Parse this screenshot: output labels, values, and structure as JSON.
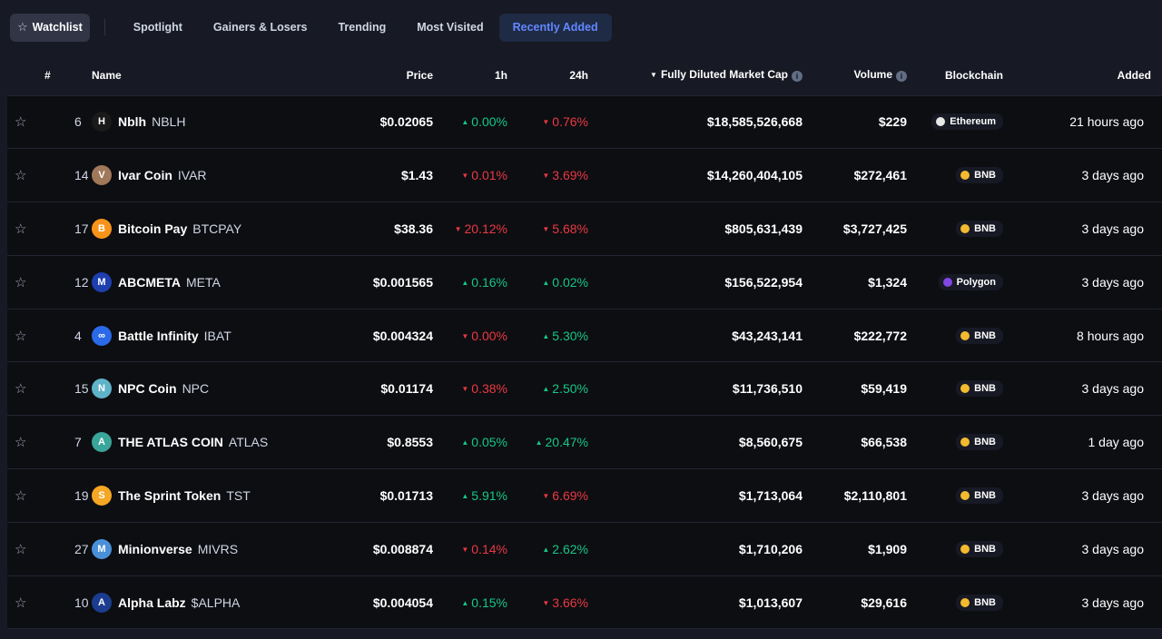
{
  "tabs": {
    "watchlist": "Watchlist",
    "spotlight": "Spotlight",
    "gainers": "Gainers & Losers",
    "trending": "Trending",
    "most_visited": "Most Visited",
    "recently_added": "Recently Added"
  },
  "headers": {
    "rank": "#",
    "name": "Name",
    "price": "Price",
    "h1": "1h",
    "h24": "24h",
    "mcap": "Fully Diluted Market Cap",
    "volume": "Volume",
    "chain": "Blockchain",
    "added": "Added"
  },
  "colors": {
    "up": "#16c784",
    "down": "#ea3943",
    "accent": "#6188ff"
  },
  "rows": [
    {
      "rank": "6",
      "name": "Nblh",
      "symbol": "NBLH",
      "price": "$0.02065",
      "h1": "0.00%",
      "h1_dir": "up",
      "h24": "0.76%",
      "h24_dir": "down",
      "mcap": "$18,585,526,668",
      "volume": "$229",
      "chain": "Ethereum",
      "added": "21 hours ago",
      "logo_color": "#1a1a1a",
      "logo_text": "H",
      "chain_color": "#e8e8e8"
    },
    {
      "rank": "14",
      "name": "Ivar Coin",
      "symbol": "IVAR",
      "price": "$1.43",
      "h1": "0.01%",
      "h1_dir": "down",
      "h24": "3.69%",
      "h24_dir": "down",
      "mcap": "$14,260,404,105",
      "volume": "$272,461",
      "chain": "BNB",
      "added": "3 days ago",
      "logo_color": "#a0785a",
      "logo_text": "V",
      "chain_color": "#f3ba2f"
    },
    {
      "rank": "17",
      "name": "Bitcoin Pay",
      "symbol": "BTCPAY",
      "price": "$38.36",
      "h1": "20.12%",
      "h1_dir": "down",
      "h24": "5.68%",
      "h24_dir": "down",
      "mcap": "$805,631,439",
      "volume": "$3,727,425",
      "chain": "BNB",
      "added": "3 days ago",
      "logo_color": "#f7931a",
      "logo_text": "B",
      "chain_color": "#f3ba2f"
    },
    {
      "rank": "12",
      "name": "ABCMETA",
      "symbol": "META",
      "price": "$0.001565",
      "h1": "0.16%",
      "h1_dir": "up",
      "h24": "0.02%",
      "h24_dir": "up",
      "mcap": "$156,522,954",
      "volume": "$1,324",
      "chain": "Polygon",
      "added": "3 days ago",
      "logo_color": "#1e3fae",
      "logo_text": "M",
      "chain_color": "#8247e5"
    },
    {
      "rank": "4",
      "name": "Battle Infinity",
      "symbol": "IBAT",
      "price": "$0.004324",
      "h1": "0.00%",
      "h1_dir": "down",
      "h24": "5.30%",
      "h24_dir": "up",
      "mcap": "$43,243,141",
      "volume": "$222,772",
      "chain": "BNB",
      "added": "8 hours ago",
      "logo_color": "#2a6ae8",
      "logo_text": "∞",
      "chain_color": "#f3ba2f"
    },
    {
      "rank": "15",
      "name": "NPC Coin",
      "symbol": "NPC",
      "price": "$0.01174",
      "h1": "0.38%",
      "h1_dir": "down",
      "h24": "2.50%",
      "h24_dir": "up",
      "mcap": "$11,736,510",
      "volume": "$59,419",
      "chain": "BNB",
      "added": "3 days ago",
      "logo_color": "#5fb3c9",
      "logo_text": "N",
      "chain_color": "#f3ba2f"
    },
    {
      "rank": "7",
      "name": "THE ATLAS COIN",
      "symbol": "ATLAS",
      "price": "$0.8553",
      "h1": "0.05%",
      "h1_dir": "up",
      "h24": "20.47%",
      "h24_dir": "up",
      "mcap": "$8,560,675",
      "volume": "$66,538",
      "chain": "BNB",
      "added": "1 day ago",
      "logo_color": "#3aa59a",
      "logo_text": "A",
      "chain_color": "#f3ba2f"
    },
    {
      "rank": "19",
      "name": "The Sprint Token",
      "symbol": "TST",
      "price": "$0.01713",
      "h1": "5.91%",
      "h1_dir": "up",
      "h24": "6.69%",
      "h24_dir": "down",
      "mcap": "$1,713,064",
      "volume": "$2,110,801",
      "chain": "BNB",
      "added": "3 days ago",
      "logo_color": "#f5a623",
      "logo_text": "S",
      "chain_color": "#f3ba2f"
    },
    {
      "rank": "27",
      "name": "Minionverse",
      "symbol": "MIVRS",
      "price": "$0.008874",
      "h1": "0.14%",
      "h1_dir": "down",
      "h24": "2.62%",
      "h24_dir": "up",
      "mcap": "$1,710,206",
      "volume": "$1,909",
      "chain": "BNB",
      "added": "3 days ago",
      "logo_color": "#4a90d9",
      "logo_text": "M",
      "chain_color": "#f3ba2f"
    },
    {
      "rank": "10",
      "name": "Alpha Labz",
      "symbol": "$ALPHA",
      "price": "$0.004054",
      "h1": "0.15%",
      "h1_dir": "up",
      "h24": "3.66%",
      "h24_dir": "down",
      "mcap": "$1,013,607",
      "volume": "$29,616",
      "chain": "BNB",
      "added": "3 days ago",
      "logo_color": "#1c3d8f",
      "logo_text": "A",
      "chain_color": "#f3ba2f"
    }
  ]
}
